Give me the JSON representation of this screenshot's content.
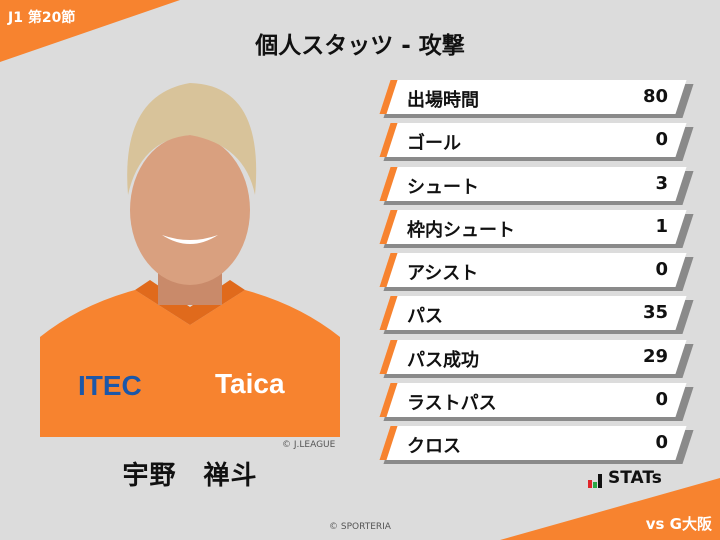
{
  "header": {
    "round": "J1 第20節",
    "title": "個人スタッツ - 攻撃"
  },
  "player": {
    "name": "宇野　禅斗",
    "photo_credit": "© J.LEAGUE",
    "sponsor": "Taica",
    "kit_color": "#f7832f"
  },
  "stats": [
    {
      "label": "出場時間",
      "value": "80"
    },
    {
      "label": "ゴール",
      "value": "0"
    },
    {
      "label": "シュート",
      "value": "3"
    },
    {
      "label": "枠内シュート",
      "value": "1"
    },
    {
      "label": "アシスト",
      "value": "0"
    },
    {
      "label": "パス",
      "value": "35"
    },
    {
      "label": "パス成功",
      "value": "29"
    },
    {
      "label": "ラストパス",
      "value": "0"
    },
    {
      "label": "クロス",
      "value": "0"
    }
  ],
  "brand": {
    "logo_text": "STATs"
  },
  "footer": {
    "copyright": "© SPORTERIA",
    "opponent": "vs G大阪"
  },
  "colors": {
    "accent": "#f7832f",
    "background": "#dcdcdc"
  }
}
